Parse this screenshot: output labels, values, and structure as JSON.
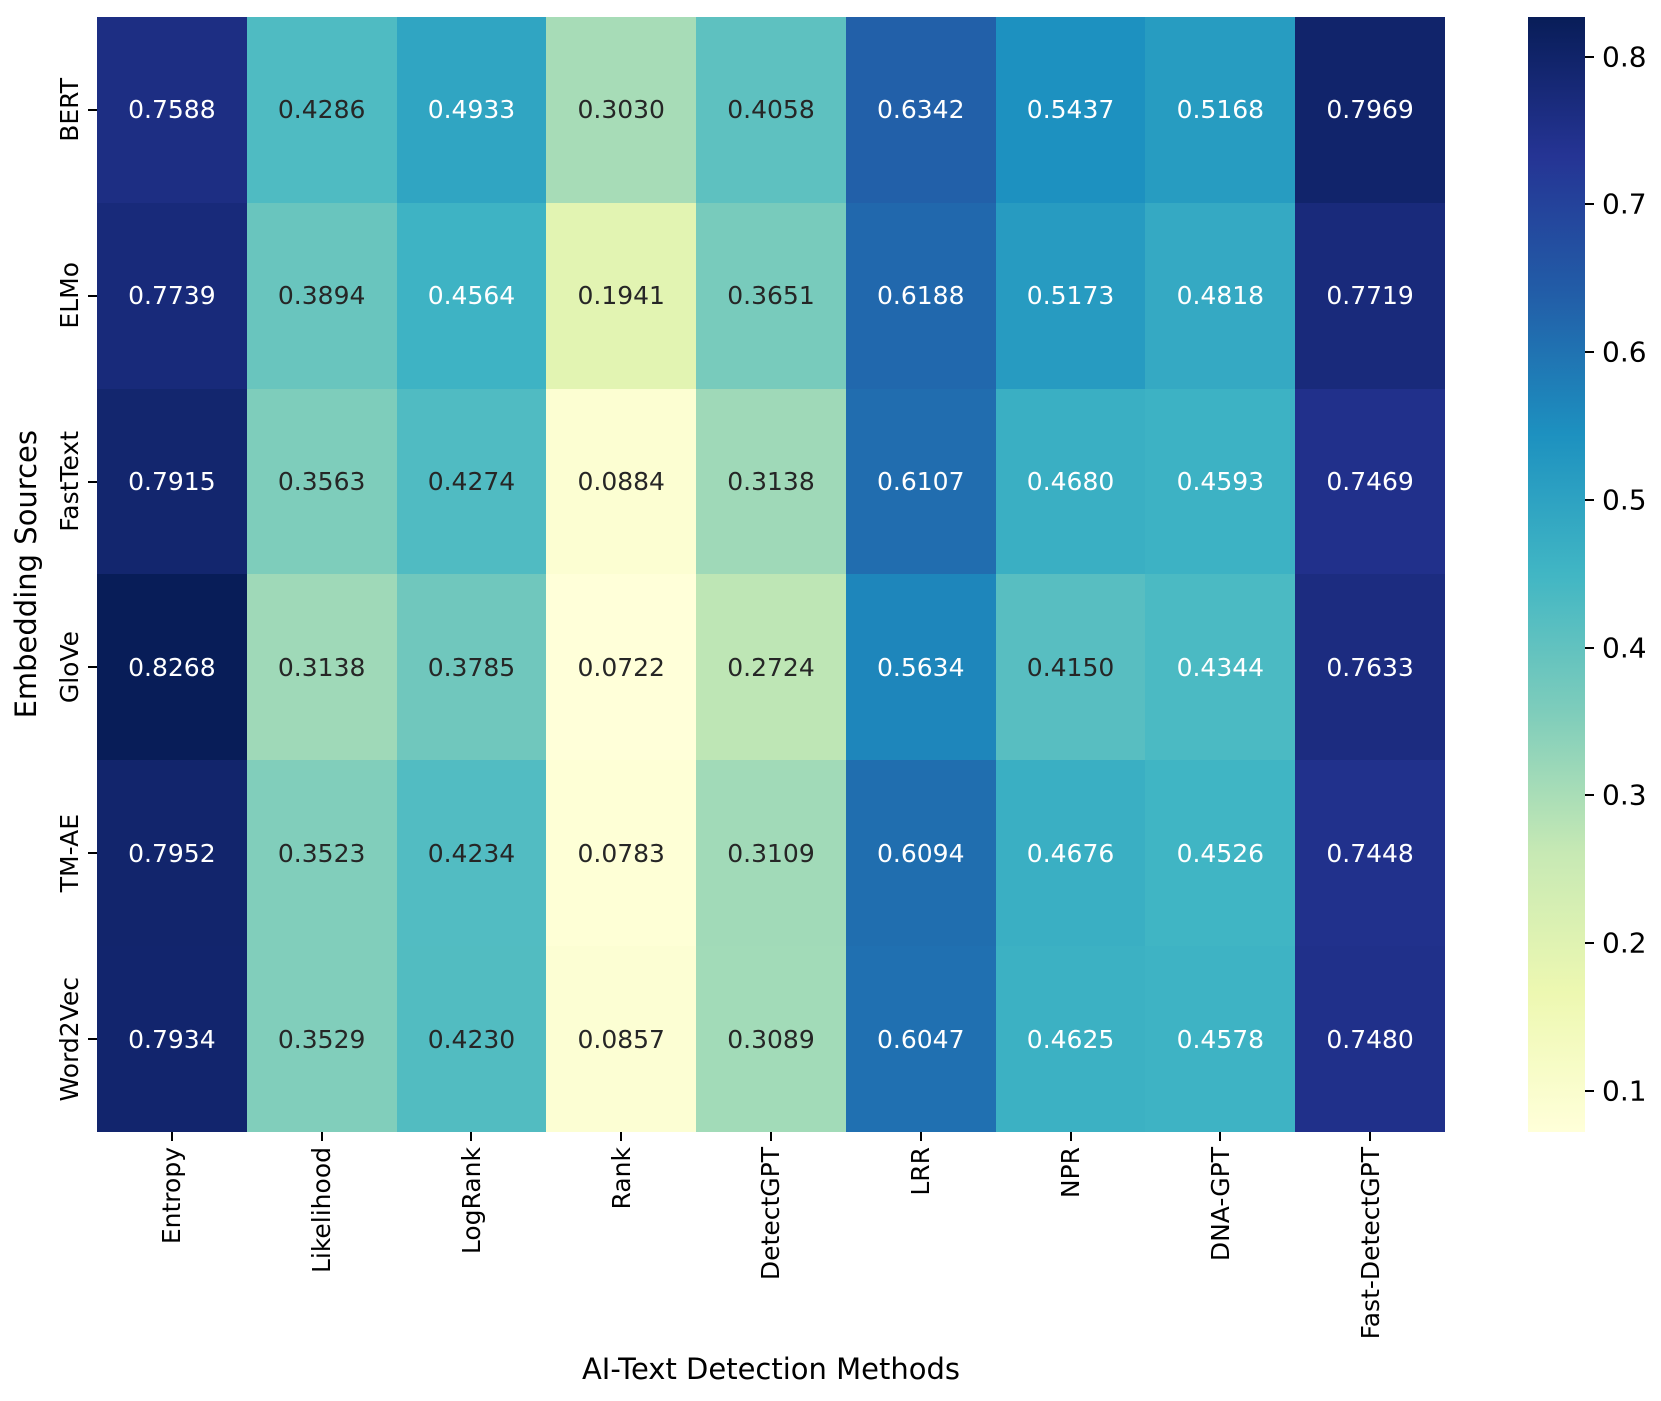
{
  "chart_data": {
    "type": "heatmap",
    "title": "",
    "xlabel": "AI-Text Detection Methods",
    "ylabel": "Embedding Sources",
    "rows": [
      "BERT",
      "ELMo",
      "FastText",
      "GloVe",
      "TM-AE",
      "Word2Vec"
    ],
    "columns": [
      "Entropy",
      "Likelihood",
      "LogRank",
      "Rank",
      "DetectGPT",
      "LRR",
      "NPR",
      "DNA-GPT",
      "Fast-DetectGPT"
    ],
    "values": [
      [
        0.7588,
        0.4286,
        0.4933,
        0.303,
        0.4058,
        0.6342,
        0.5437,
        0.5168,
        0.7969
      ],
      [
        0.7739,
        0.3894,
        0.4564,
        0.1941,
        0.3651,
        0.6188,
        0.5173,
        0.4818,
        0.7719
      ],
      [
        0.7915,
        0.3563,
        0.4274,
        0.0884,
        0.3138,
        0.6107,
        0.468,
        0.4593,
        0.7469
      ],
      [
        0.8268,
        0.3138,
        0.3785,
        0.0722,
        0.2724,
        0.5634,
        0.415,
        0.4344,
        0.7633
      ],
      [
        0.7952,
        0.3523,
        0.4234,
        0.0783,
        0.3109,
        0.6094,
        0.4676,
        0.4526,
        0.7448
      ],
      [
        0.7934,
        0.3529,
        0.423,
        0.0857,
        0.3089,
        0.6047,
        0.4625,
        0.4578,
        0.748
      ]
    ],
    "value_decimals": 4,
    "vmin": 0.0722,
    "vmax": 0.8268,
    "colormap": {
      "name": "YlGnBu",
      "stops": [
        "#ffffd9",
        "#edf8b1",
        "#c7e9b4",
        "#7fcdbb",
        "#41b6c4",
        "#1d91c0",
        "#225ea8",
        "#253494",
        "#081d58"
      ]
    },
    "annotation_colors": {
      "light": "#ffffff",
      "dark": "#262626"
    },
    "colorbar_ticks": [
      0.8,
      0.7,
      0.6,
      0.5,
      0.4,
      0.3,
      0.2,
      0.1
    ],
    "colorbar_tick_decimals": 1,
    "legend": "colorbar-right",
    "grid": false
  }
}
